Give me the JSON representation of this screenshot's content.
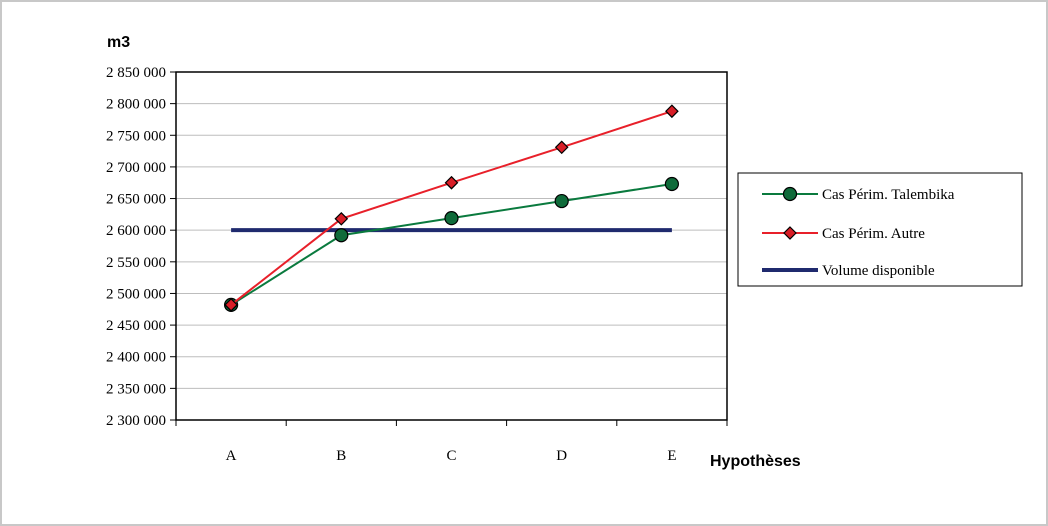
{
  "chart_data": {
    "type": "line",
    "ylabel": "m3",
    "xlabel": "Hypothèses",
    "categories": [
      "A",
      "B",
      "C",
      "D",
      "E"
    ],
    "ylim": [
      2300000,
      2850000
    ],
    "ytick_step": 50000,
    "grid": true,
    "legend_position": "right",
    "series": [
      {
        "name": "Cas Périm. Talembika",
        "color": "#0a7a3e",
        "marker": "circle",
        "marker_fill": "#0f6b3a",
        "values": [
          2482000,
          2592000,
          2619000,
          2646000,
          2673000
        ]
      },
      {
        "name": "Cas Périm. Autre",
        "color": "#e8202a",
        "marker": "diamond",
        "marker_fill": "#d81e27",
        "values": [
          2482000,
          2618000,
          2675000,
          2731000,
          2788000
        ]
      },
      {
        "name": "Volume disponible",
        "color": "#1f2a6e",
        "marker": "none",
        "marker_fill": "#1f2a6e",
        "values": [
          2600000,
          2600000,
          2600000,
          2600000,
          2600000
        ]
      }
    ]
  }
}
